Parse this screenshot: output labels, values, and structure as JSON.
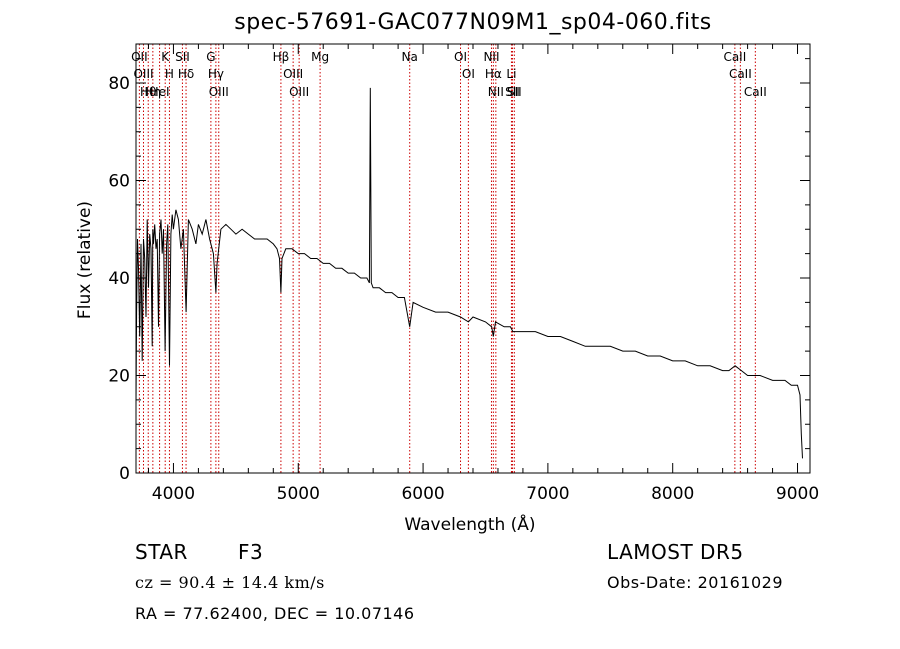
{
  "chart_data": {
    "type": "line",
    "title": "spec-57691-GAC077N09M1_sp04-060.fits",
    "xlabel": "Wavelength (Å)",
    "ylabel": "Flux (relative)",
    "xlim": [
      3700,
      9100
    ],
    "ylim": [
      0,
      88
    ],
    "x_ticks": [
      4000,
      5000,
      6000,
      7000,
      8000,
      9000
    ],
    "y_ticks": [
      0,
      20,
      40,
      60,
      80
    ],
    "series": [
      {
        "x": [
          3700,
          3705,
          3712,
          3720,
          3730,
          3740,
          3750,
          3760,
          3770,
          3780,
          3790,
          3800,
          3810,
          3820,
          3830,
          3835,
          3840,
          3850,
          3860,
          3870,
          3880,
          3889,
          3900,
          3910,
          3920,
          3933,
          3945,
          3955,
          3968,
          3980,
          3990,
          4000,
          4020,
          4040,
          4060,
          4080,
          4101,
          4120,
          4150,
          4180,
          4200,
          4230,
          4260,
          4290,
          4320,
          4340,
          4350,
          4380,
          4420,
          4460,
          4500,
          4550,
          4600,
          4650,
          4700,
          4750,
          4800,
          4830,
          4850,
          4861,
          4870,
          4900,
          4950,
          5000,
          5050,
          5100,
          5150,
          5200,
          5250,
          5300,
          5350,
          5400,
          5450,
          5500,
          5550,
          5570,
          5577,
          5585,
          5600,
          5650,
          5700,
          5750,
          5800,
          5850,
          5893,
          5920,
          6000,
          6100,
          6200,
          6300,
          6363,
          6400,
          6500,
          6550,
          6563,
          6580,
          6650,
          6700,
          6720,
          6800,
          6900,
          7000,
          7100,
          7200,
          7300,
          7400,
          7500,
          7600,
          7700,
          7800,
          7900,
          8000,
          8100,
          8200,
          8300,
          8400,
          8450,
          8500,
          8550,
          8600,
          8650,
          8700,
          8800,
          8900,
          8950,
          9000,
          9020,
          9030,
          9040
        ],
        "y": [
          14,
          33,
          48,
          42,
          28,
          47,
          23,
          48,
          44,
          32,
          52,
          38,
          49,
          46,
          26,
          50,
          47,
          51,
          46,
          48,
          30,
          49,
          52,
          45,
          50,
          25,
          47,
          51,
          22,
          49,
          53,
          50,
          54,
          52,
          46,
          50,
          33,
          52,
          50,
          47,
          51,
          49,
          52,
          48,
          45,
          37,
          43,
          50,
          51,
          50,
          49,
          50,
          49,
          48,
          48,
          48,
          47,
          46,
          44,
          37,
          44,
          46,
          46,
          45,
          45,
          44,
          44,
          43,
          43,
          42,
          42,
          41,
          41,
          40,
          40,
          39,
          79,
          39,
          38,
          38,
          37,
          37,
          36,
          36,
          30,
          35,
          34,
          33,
          33,
          32,
          31,
          32,
          31,
          30,
          28,
          31,
          30,
          30,
          29,
          29,
          29,
          28,
          28,
          27,
          26,
          26,
          26,
          25,
          25,
          24,
          24,
          23,
          23,
          22,
          22,
          21,
          21,
          22,
          21,
          20,
          20,
          20,
          19,
          19,
          18,
          18,
          16,
          8,
          3
        ]
      }
    ],
    "line_markers": [
      {
        "label": "Hθ",
        "wavelength": 3798
      },
      {
        "label": "OII",
        "wavelength": 3727
      },
      {
        "label": "OIII",
        "wavelength": 3760
      },
      {
        "label": "HeI",
        "wavelength": 3889
      },
      {
        "label": "Hη",
        "wavelength": 3835
      },
      {
        "label": "K",
        "wavelength": 3934
      },
      {
        "label": "H",
        "wavelength": 3968
      },
      {
        "label": "Hδ",
        "wavelength": 4101
      },
      {
        "label": "SII",
        "wavelength": 4072
      },
      {
        "label": "OIII",
        "wavelength": 4363
      },
      {
        "label": "Hγ",
        "wavelength": 4340
      },
      {
        "label": "G",
        "wavelength": 4300
      },
      {
        "label": "OIII",
        "wavelength": 5007
      },
      {
        "label": "OIII",
        "wavelength": 4959
      },
      {
        "label": "Hβ",
        "wavelength": 4861
      },
      {
        "label": "Mg",
        "wavelength": 5175
      },
      {
        "label": "Na",
        "wavelength": 5893
      },
      {
        "label": "OI",
        "wavelength": 6300
      },
      {
        "label": "OI",
        "wavelength": 6363
      },
      {
        "label": "Hα",
        "wavelength": 6563
      },
      {
        "label": "NII",
        "wavelength": 6548
      },
      {
        "label": "NII",
        "wavelength": 6583
      },
      {
        "label": "SII",
        "wavelength": 6716
      },
      {
        "label": "Li",
        "wavelength": 6708
      },
      {
        "label": "SII",
        "wavelength": 6731
      },
      {
        "label": "CaII",
        "wavelength": 8542
      },
      {
        "label": "CaII",
        "wavelength": 8498
      },
      {
        "label": "CaII",
        "wavelength": 8662
      }
    ],
    "grid": false,
    "legend": "none",
    "line_color": "#000000",
    "marker_color": "#cc0000"
  },
  "footer": {
    "object_class": "STAR",
    "subclass": "F3",
    "survey": "LAMOST DR5",
    "cz": "cz = 90.4 ± 14.4 km/s",
    "obs_date": "Obs-Date: 20161029",
    "coords": "RA =  77.62400, DEC =  10.07146"
  }
}
